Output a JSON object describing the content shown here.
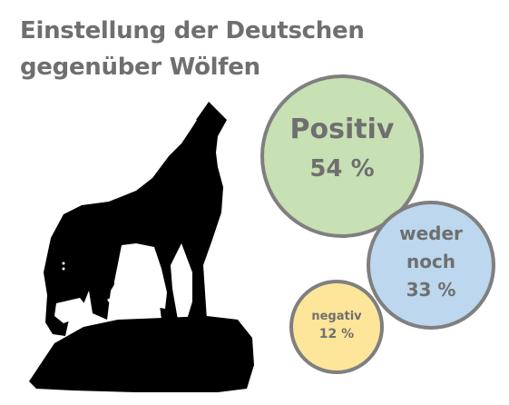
{
  "title": {
    "line1": "Einstellung der Deutschen",
    "line2": "gegenüber Wölfen"
  },
  "wolf_icon": "howling-wolf-silhouette",
  "chart_data": {
    "type": "bubble",
    "title": "Einstellung der Deutschen gegenüber Wölfen",
    "unit": "%",
    "series": [
      {
        "label_lines": [
          "Positiv"
        ],
        "value": 54,
        "value_label": "54 %",
        "color": "#c7e0b4"
      },
      {
        "label_lines": [
          "weder",
          "noch"
        ],
        "value": 33,
        "value_label": "33 %",
        "color": "#bcd7ee"
      },
      {
        "label_lines": [
          "negativ"
        ],
        "value": 12,
        "value_label": "12 %",
        "color": "#fde59a"
      }
    ],
    "border_color": "#7f7f7f",
    "text_color": "#6f6f6f"
  }
}
